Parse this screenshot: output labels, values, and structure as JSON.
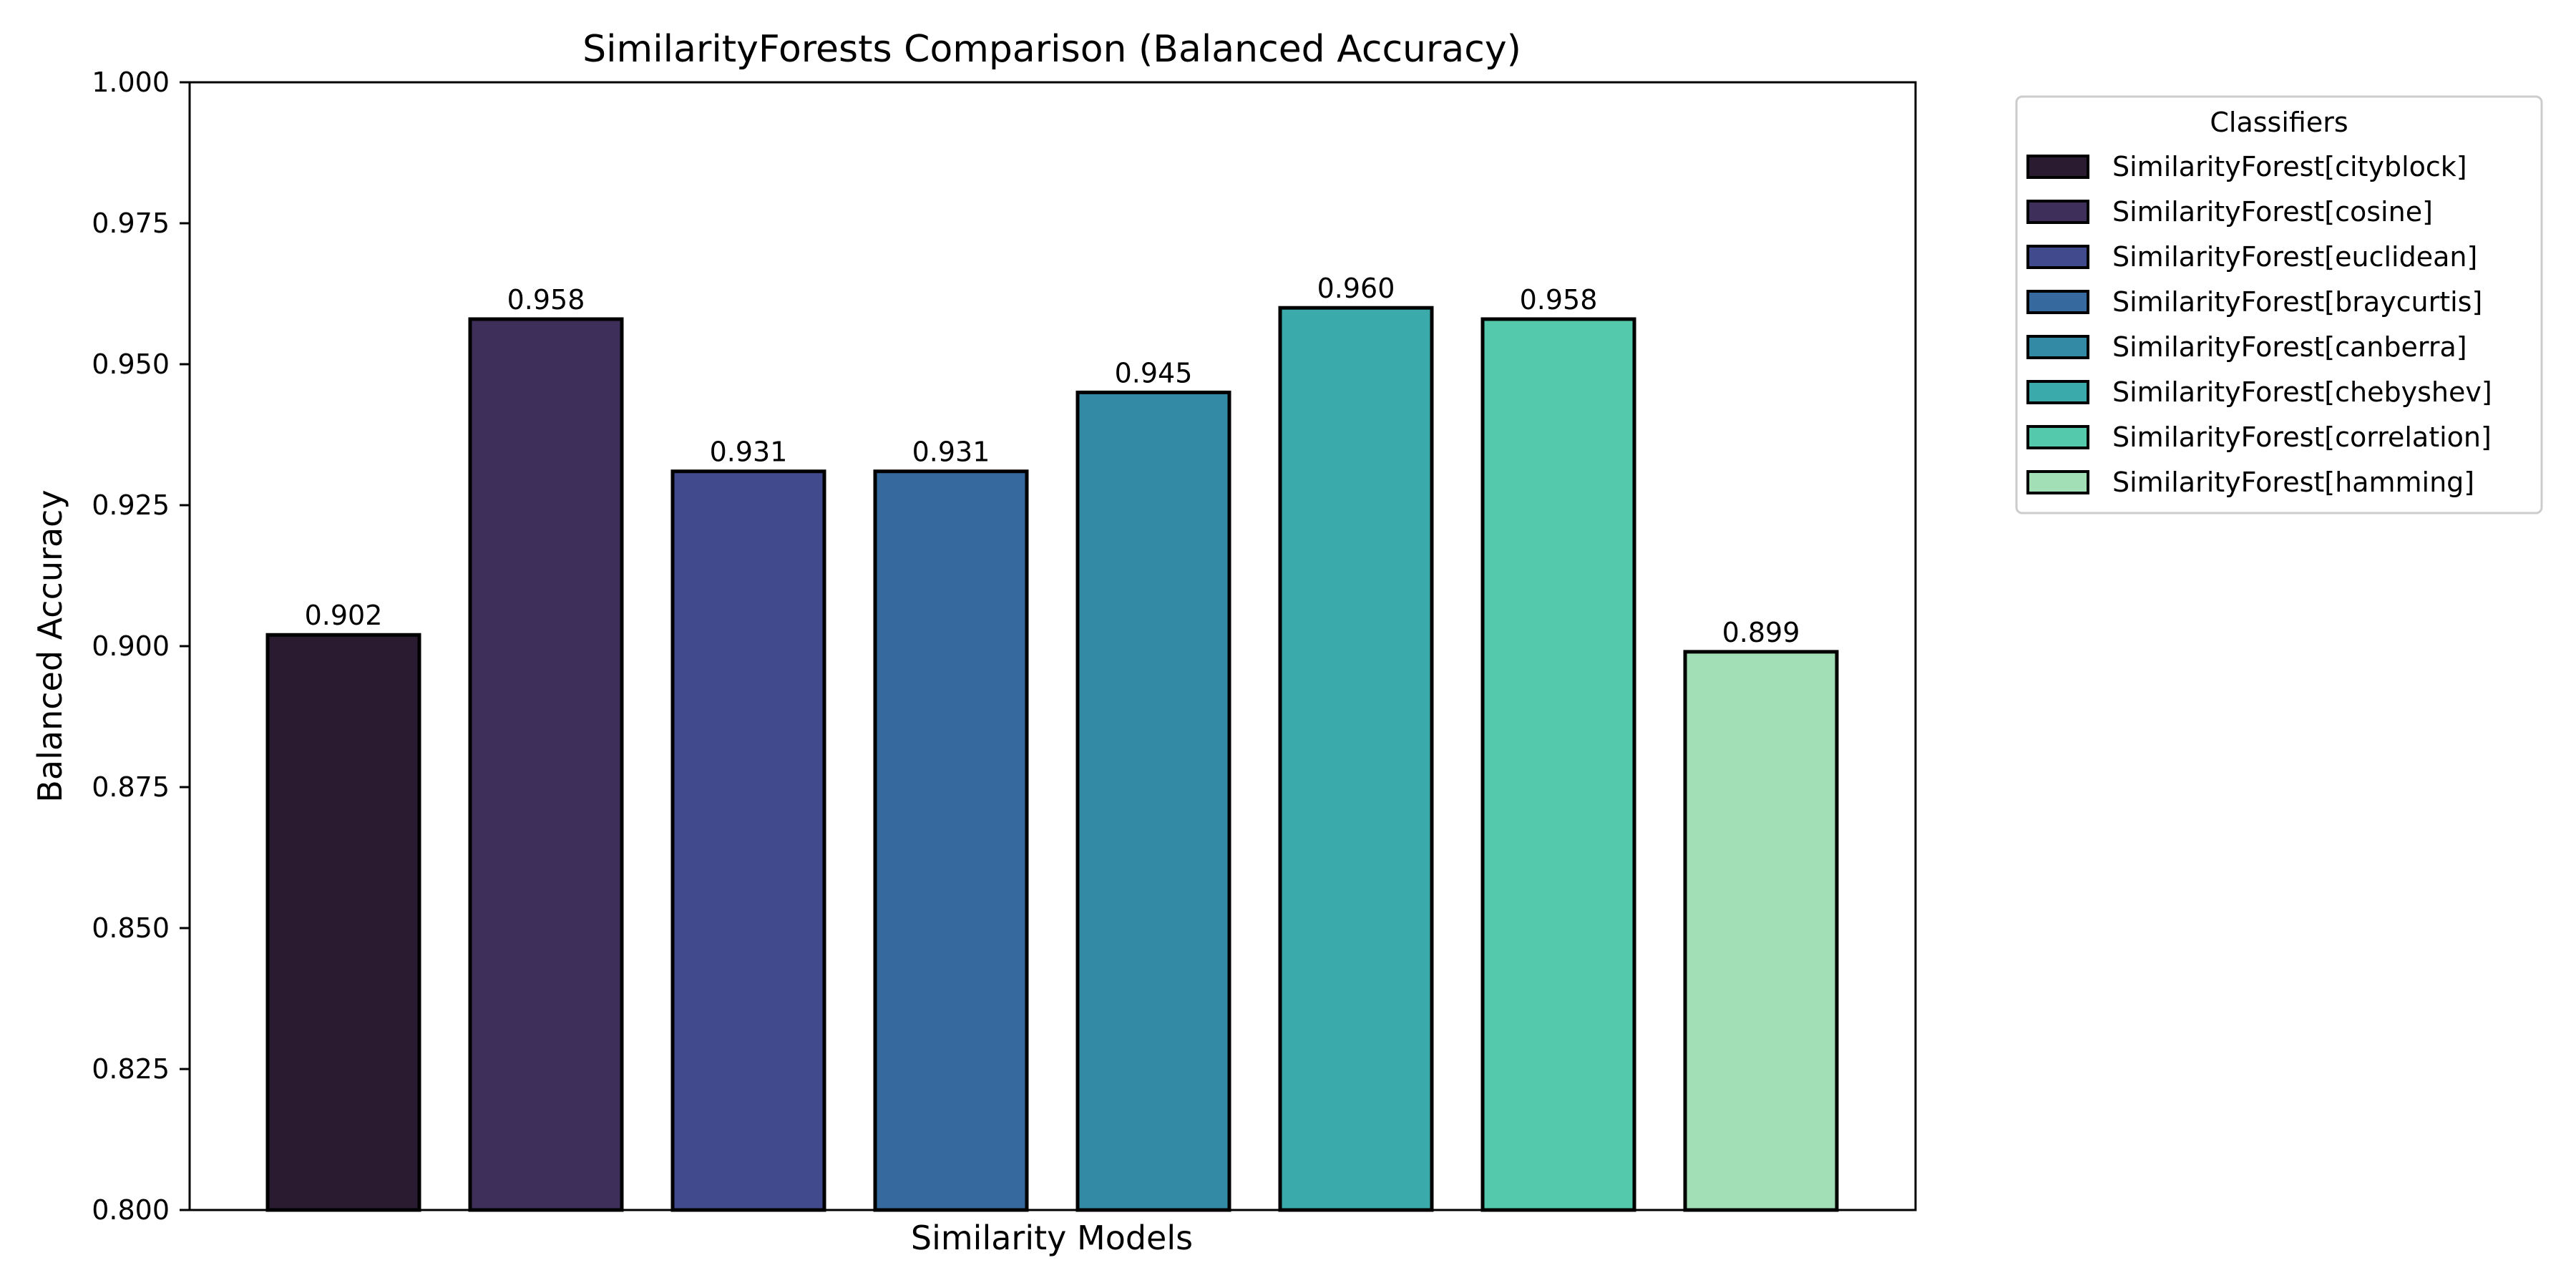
{
  "chart_data": {
    "type": "bar",
    "title": "SimilarityForests Comparison (Balanced Accuracy)",
    "xlabel": "Similarity Models",
    "ylabel": "Balanced Accuracy",
    "ylim": [
      0.8,
      1.0
    ],
    "yticks": [
      "0.800",
      "0.825",
      "0.850",
      "0.875",
      "0.900",
      "0.925",
      "0.950",
      "0.975",
      "1.000"
    ],
    "categories": [
      "SimilarityForest[cityblock]",
      "SimilarityForest[cosine]",
      "SimilarityForest[euclidean]",
      "SimilarityForest[braycurtis]",
      "SimilarityForest[canberra]",
      "SimilarityForest[chebyshev]",
      "SimilarityForest[correlation]",
      "SimilarityForest[hamming]"
    ],
    "values": [
      0.902,
      0.958,
      0.931,
      0.931,
      0.945,
      0.96,
      0.958,
      0.899
    ],
    "data_labels": [
      "0.902",
      "0.958",
      "0.931",
      "0.931",
      "0.945",
      "0.960",
      "0.958",
      "0.899"
    ],
    "colors": [
      "#2a1b30",
      "#3d2e5a",
      "#414a8c",
      "#36699d",
      "#338aa4",
      "#3aaaaa",
      "#55c9ab",
      "#a2dfb7"
    ],
    "grid": false,
    "legend": {
      "title": "Classifiers",
      "placement": "outside-upper-right"
    }
  }
}
